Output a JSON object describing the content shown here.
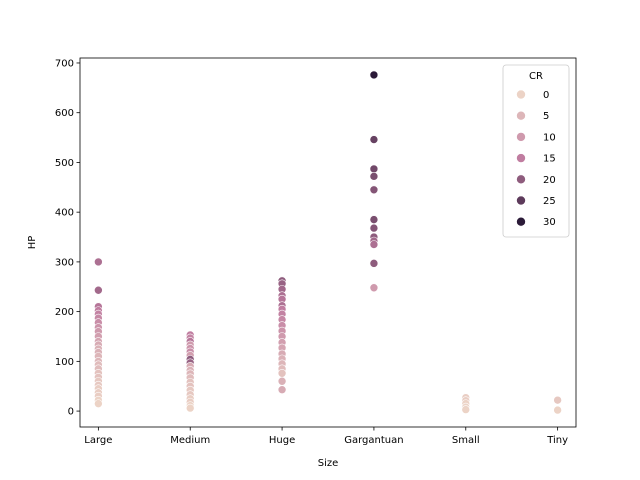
{
  "chart_data": {
    "type": "scatter",
    "xlabel": "Size",
    "ylabel": "HP",
    "categories": [
      "Large",
      "Medium",
      "Huge",
      "Gargantuan",
      "Small",
      "Tiny"
    ],
    "ylim": [
      -32,
      710
    ],
    "yticks": [
      0,
      100,
      200,
      300,
      400,
      500,
      600,
      700
    ],
    "grid": false,
    "hue": {
      "title": "CR",
      "min": 0,
      "max": 30,
      "legend_values": [
        0,
        5,
        10,
        15,
        20,
        25,
        30
      ],
      "color_low": "#ecd3c6",
      "color_high": "#2b1a38"
    },
    "legend_placement": "top-right",
    "points": [
      {
        "x": "Large",
        "y": 300,
        "cr": 17
      },
      {
        "x": "Large",
        "y": 243,
        "cr": 18
      },
      {
        "x": "Large",
        "y": 210,
        "cr": 16
      },
      {
        "x": "Large",
        "y": 202,
        "cr": 15
      },
      {
        "x": "Large",
        "y": 195,
        "cr": 14
      },
      {
        "x": "Large",
        "y": 187,
        "cr": 13
      },
      {
        "x": "Large",
        "y": 178,
        "cr": 12
      },
      {
        "x": "Large",
        "y": 168,
        "cr": 11
      },
      {
        "x": "Large",
        "y": 160,
        "cr": 10
      },
      {
        "x": "Large",
        "y": 150,
        "cr": 9
      },
      {
        "x": "Large",
        "y": 140,
        "cr": 8
      },
      {
        "x": "Large",
        "y": 133,
        "cr": 7
      },
      {
        "x": "Large",
        "y": 125,
        "cr": 6
      },
      {
        "x": "Large",
        "y": 118,
        "cr": 6
      },
      {
        "x": "Large",
        "y": 110,
        "cr": 5
      },
      {
        "x": "Large",
        "y": 100,
        "cr": 5
      },
      {
        "x": "Large",
        "y": 93,
        "cr": 4
      },
      {
        "x": "Large",
        "y": 85,
        "cr": 4
      },
      {
        "x": "Large",
        "y": 76,
        "cr": 3
      },
      {
        "x": "Large",
        "y": 68,
        "cr": 3
      },
      {
        "x": "Large",
        "y": 60,
        "cr": 2
      },
      {
        "x": "Large",
        "y": 52,
        "cr": 2
      },
      {
        "x": "Large",
        "y": 45,
        "cr": 1
      },
      {
        "x": "Large",
        "y": 37,
        "cr": 1
      },
      {
        "x": "Large",
        "y": 30,
        "cr": 1
      },
      {
        "x": "Large",
        "y": 22,
        "cr": 0
      },
      {
        "x": "Large",
        "y": 15,
        "cr": 0
      },
      {
        "x": "Medium",
        "y": 153,
        "cr": 15
      },
      {
        "x": "Medium",
        "y": 147,
        "cr": 14
      },
      {
        "x": "Medium",
        "y": 140,
        "cr": 16
      },
      {
        "x": "Medium",
        "y": 133,
        "cr": 10
      },
      {
        "x": "Medium",
        "y": 126,
        "cr": 11
      },
      {
        "x": "Medium",
        "y": 119,
        "cr": 12
      },
      {
        "x": "Medium",
        "y": 112,
        "cr": 9
      },
      {
        "x": "Medium",
        "y": 104,
        "cr": 20
      },
      {
        "x": "Medium",
        "y": 97,
        "cr": 19
      },
      {
        "x": "Medium",
        "y": 90,
        "cr": 7
      },
      {
        "x": "Medium",
        "y": 82,
        "cr": 6
      },
      {
        "x": "Medium",
        "y": 75,
        "cr": 5
      },
      {
        "x": "Medium",
        "y": 67,
        "cr": 4
      },
      {
        "x": "Medium",
        "y": 58,
        "cr": 3
      },
      {
        "x": "Medium",
        "y": 50,
        "cr": 3
      },
      {
        "x": "Medium",
        "y": 42,
        "cr": 2
      },
      {
        "x": "Medium",
        "y": 33,
        "cr": 2
      },
      {
        "x": "Medium",
        "y": 25,
        "cr": 1
      },
      {
        "x": "Medium",
        "y": 18,
        "cr": 1
      },
      {
        "x": "Medium",
        "y": 11,
        "cr": 0
      },
      {
        "x": "Medium",
        "y": 6,
        "cr": 0
      },
      {
        "x": "Huge",
        "y": 262,
        "cr": 20
      },
      {
        "x": "Huge",
        "y": 256,
        "cr": 19
      },
      {
        "x": "Huge",
        "y": 245,
        "cr": 18
      },
      {
        "x": "Huge",
        "y": 232,
        "cr": 17
      },
      {
        "x": "Huge",
        "y": 225,
        "cr": 16
      },
      {
        "x": "Huge",
        "y": 212,
        "cr": 17
      },
      {
        "x": "Huge",
        "y": 205,
        "cr": 15
      },
      {
        "x": "Huge",
        "y": 195,
        "cr": 14
      },
      {
        "x": "Huge",
        "y": 184,
        "cr": 13
      },
      {
        "x": "Huge",
        "y": 172,
        "cr": 12
      },
      {
        "x": "Huge",
        "y": 161,
        "cr": 11
      },
      {
        "x": "Huge",
        "y": 150,
        "cr": 10
      },
      {
        "x": "Huge",
        "y": 138,
        "cr": 9
      },
      {
        "x": "Huge",
        "y": 127,
        "cr": 8
      },
      {
        "x": "Huge",
        "y": 115,
        "cr": 7
      },
      {
        "x": "Huge",
        "y": 105,
        "cr": 6
      },
      {
        "x": "Huge",
        "y": 95,
        "cr": 5
      },
      {
        "x": "Huge",
        "y": 85,
        "cr": 4
      },
      {
        "x": "Huge",
        "y": 76,
        "cr": 3
      },
      {
        "x": "Huge",
        "y": 60,
        "cr": 6
      },
      {
        "x": "Huge",
        "y": 43,
        "cr": 7
      },
      {
        "x": "Gargantuan",
        "y": 676,
        "cr": 30
      },
      {
        "x": "Gargantuan",
        "y": 546,
        "cr": 24
      },
      {
        "x": "Gargantuan",
        "y": 487,
        "cr": 23
      },
      {
        "x": "Gargantuan",
        "y": 472,
        "cr": 22
      },
      {
        "x": "Gargantuan",
        "y": 445,
        "cr": 21
      },
      {
        "x": "Gargantuan",
        "y": 385,
        "cr": 22
      },
      {
        "x": "Gargantuan",
        "y": 368,
        "cr": 21
      },
      {
        "x": "Gargantuan",
        "y": 350,
        "cr": 20
      },
      {
        "x": "Gargantuan",
        "y": 342,
        "cr": 18
      },
      {
        "x": "Gargantuan",
        "y": 335,
        "cr": 17
      },
      {
        "x": "Gargantuan",
        "y": 297,
        "cr": 20
      },
      {
        "x": "Gargantuan",
        "y": 248,
        "cr": 10
      },
      {
        "x": "Small",
        "y": 27,
        "cr": 1
      },
      {
        "x": "Small",
        "y": 21,
        "cr": 1
      },
      {
        "x": "Small",
        "y": 15,
        "cr": 0
      },
      {
        "x": "Small",
        "y": 8,
        "cr": 0
      },
      {
        "x": "Small",
        "y": 3,
        "cr": 0
      },
      {
        "x": "Tiny",
        "y": 22,
        "cr": 2
      },
      {
        "x": "Tiny",
        "y": 2,
        "cr": 0
      }
    ]
  }
}
